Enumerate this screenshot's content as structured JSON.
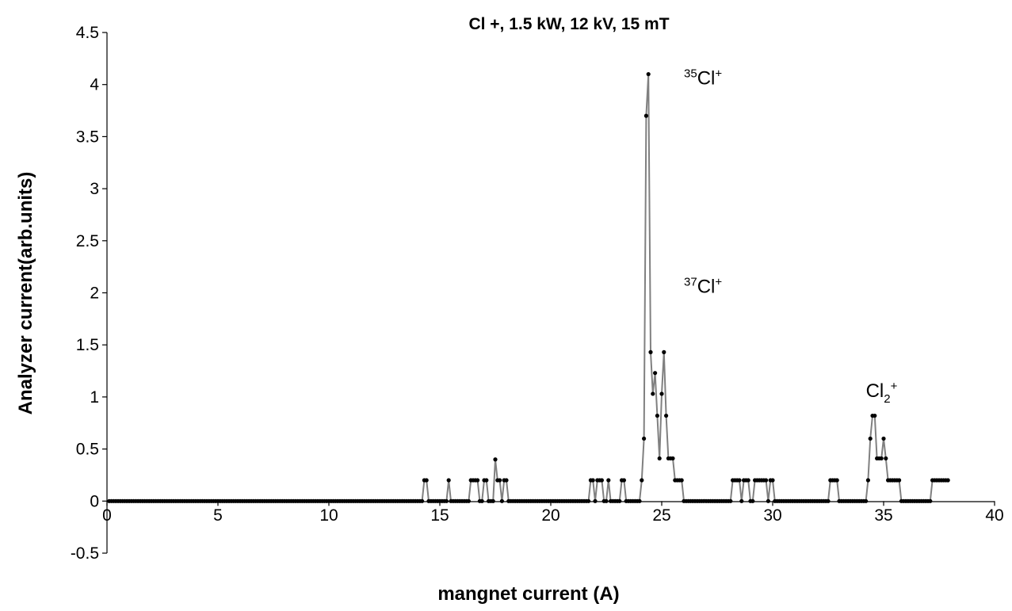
{
  "chart_data": {
    "type": "line",
    "title": "Cl +, 1.5 kW, 12 kV, 15 mT",
    "xlabel": "mangnet current (A)",
    "ylabel": "Analyzer current(arb.units)",
    "xlim": [
      0,
      40
    ],
    "ylim": [
      -0.5,
      4.5
    ],
    "x_ticks": [
      "0",
      "5",
      "10",
      "15",
      "20",
      "25",
      "30",
      "35",
      "40"
    ],
    "y_ticks": [
      "-0.5",
      "0",
      "0.5",
      "1",
      "1.5",
      "2",
      "2.5",
      "3",
      "3.5",
      "4",
      "4.5"
    ],
    "grid": false,
    "legend": "none",
    "line_color": "#808080",
    "marker_color": "#000000",
    "annotations": [
      {
        "sup": "35",
        "text": "Cl",
        "sup2": "+",
        "sub": "",
        "x": 26.0,
        "y": 4.0
      },
      {
        "sup": "37",
        "text": "Cl",
        "sup2": "+",
        "sub": "",
        "x": 26.0,
        "y": 2.0
      },
      {
        "sup": "",
        "text": "Cl",
        "sub": "2",
        "sup2": "+",
        "x": 34.2,
        "y": 1.0
      }
    ],
    "series": [
      {
        "baseline_ranges": [
          [
            0.1,
            14.2
          ],
          [
            14.6,
            15.3
          ],
          [
            15.5,
            16.3
          ],
          [
            16.9,
            17.0
          ],
          [
            17.3,
            17.4
          ],
          [
            18.1,
            21.7
          ],
          [
            23.0,
            24.1
          ],
          [
            26.0,
            28.1
          ],
          [
            30.1,
            32.5
          ],
          [
            33.0,
            34.2
          ],
          [
            35.8,
            37.1
          ]
        ],
        "baseline_step": 0.1,
        "points": [
          [
            14.3,
            0.2
          ],
          [
            14.4,
            0.2
          ],
          [
            14.5,
            0.0
          ],
          [
            15.4,
            0.2
          ],
          [
            16.4,
            0.2
          ],
          [
            16.5,
            0.2
          ],
          [
            16.6,
            0.2
          ],
          [
            16.7,
            0.2
          ],
          [
            16.8,
            0.0
          ],
          [
            17.0,
            0.2
          ],
          [
            17.1,
            0.2
          ],
          [
            17.2,
            0.0
          ],
          [
            17.5,
            0.4
          ],
          [
            17.6,
            0.2
          ],
          [
            17.7,
            0.2
          ],
          [
            17.8,
            0.0
          ],
          [
            17.9,
            0.2
          ],
          [
            18.0,
            0.2
          ],
          [
            21.8,
            0.2
          ],
          [
            21.9,
            0.2
          ],
          [
            22.0,
            0.0
          ],
          [
            22.1,
            0.2
          ],
          [
            22.2,
            0.2
          ],
          [
            22.3,
            0.2
          ],
          [
            22.4,
            0.0
          ],
          [
            22.5,
            0.0
          ],
          [
            22.6,
            0.2
          ],
          [
            22.7,
            0.0
          ],
          [
            22.8,
            0.0
          ],
          [
            22.9,
            0.0
          ],
          [
            23.2,
            0.2
          ],
          [
            23.3,
            0.2
          ],
          [
            23.4,
            0.0
          ],
          [
            24.1,
            0.2
          ],
          [
            24.2,
            0.6
          ],
          [
            24.3,
            3.7
          ],
          [
            24.4,
            4.1
          ],
          [
            24.5,
            1.43
          ],
          [
            24.6,
            1.03
          ],
          [
            24.7,
            1.23
          ],
          [
            24.8,
            0.82
          ],
          [
            24.9,
            0.41
          ],
          [
            25.0,
            1.03
          ],
          [
            25.1,
            1.43
          ],
          [
            25.2,
            0.82
          ],
          [
            25.3,
            0.41
          ],
          [
            25.4,
            0.41
          ],
          [
            25.5,
            0.41
          ],
          [
            25.6,
            0.2
          ],
          [
            25.7,
            0.2
          ],
          [
            25.8,
            0.2
          ],
          [
            25.9,
            0.2
          ],
          [
            28.2,
            0.2
          ],
          [
            28.3,
            0.2
          ],
          [
            28.4,
            0.2
          ],
          [
            28.5,
            0.2
          ],
          [
            28.6,
            0.0
          ],
          [
            28.7,
            0.2
          ],
          [
            28.8,
            0.2
          ],
          [
            28.9,
            0.2
          ],
          [
            29.0,
            0.0
          ],
          [
            29.1,
            0.0
          ],
          [
            29.2,
            0.2
          ],
          [
            29.3,
            0.2
          ],
          [
            29.4,
            0.2
          ],
          [
            29.5,
            0.2
          ],
          [
            29.6,
            0.2
          ],
          [
            29.7,
            0.2
          ],
          [
            29.8,
            0.0
          ],
          [
            29.9,
            0.2
          ],
          [
            30.0,
            0.2
          ],
          [
            32.6,
            0.2
          ],
          [
            32.7,
            0.2
          ],
          [
            32.8,
            0.2
          ],
          [
            32.9,
            0.2
          ],
          [
            34.3,
            0.2
          ],
          [
            34.4,
            0.6
          ],
          [
            34.5,
            0.82
          ],
          [
            34.6,
            0.82
          ],
          [
            34.7,
            0.41
          ],
          [
            34.8,
            0.41
          ],
          [
            34.9,
            0.41
          ],
          [
            35.0,
            0.6
          ],
          [
            35.1,
            0.41
          ],
          [
            35.2,
            0.2
          ],
          [
            35.3,
            0.2
          ],
          [
            35.4,
            0.2
          ],
          [
            35.5,
            0.2
          ],
          [
            35.6,
            0.2
          ],
          [
            35.7,
            0.2
          ],
          [
            37.2,
            0.2
          ],
          [
            37.3,
            0.2
          ],
          [
            37.4,
            0.2
          ],
          [
            37.5,
            0.2
          ],
          [
            37.6,
            0.2
          ],
          [
            37.7,
            0.2
          ],
          [
            37.8,
            0.2
          ],
          [
            37.9,
            0.2
          ]
        ]
      }
    ]
  }
}
